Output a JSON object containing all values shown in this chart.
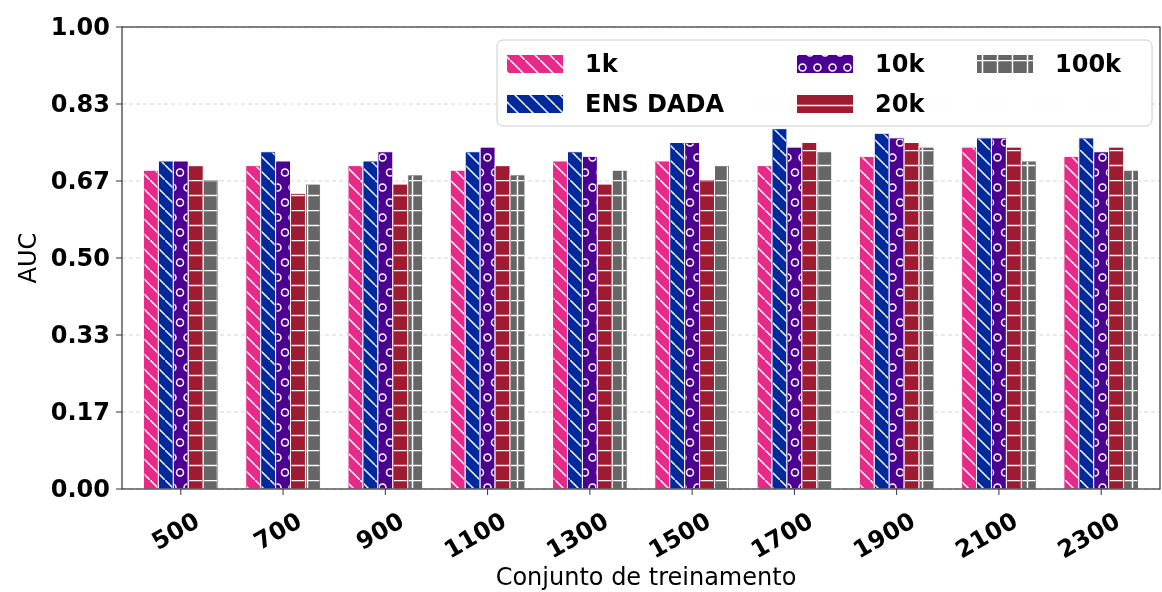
{
  "chart_data": {
    "type": "bar",
    "xlabel": "Conjunto de treinamento",
    "ylabel": "AUC",
    "categories": [
      "500",
      "700",
      "900",
      "1100",
      "1300",
      "1500",
      "1700",
      "1900",
      "2100",
      "2300"
    ],
    "series": [
      {
        "name": "1k",
        "color": "#e7298a",
        "values": [
          0.69,
          0.7,
          0.7,
          0.69,
          0.71,
          0.71,
          0.7,
          0.72,
          0.74,
          0.72
        ]
      },
      {
        "name": "ENS DADA",
        "color": "#00299c",
        "values": [
          0.71,
          0.73,
          0.71,
          0.73,
          0.73,
          0.75,
          0.78,
          0.77,
          0.76,
          0.76
        ]
      },
      {
        "name": "10k",
        "color": "#4b0092",
        "values": [
          0.71,
          0.71,
          0.73,
          0.74,
          0.72,
          0.75,
          0.74,
          0.76,
          0.76,
          0.73
        ]
      },
      {
        "name": "20k",
        "color": "#9e1b32",
        "values": [
          0.7,
          0.64,
          0.66,
          0.7,
          0.66,
          0.67,
          0.75,
          0.75,
          0.74,
          0.74
        ]
      },
      {
        "name": "100k",
        "color": "#666666",
        "values": [
          0.67,
          0.66,
          0.68,
          0.68,
          0.69,
          0.7,
          0.73,
          0.74,
          0.71,
          0.69
        ]
      }
    ],
    "ylim": [
      0,
      1
    ],
    "yticks": [
      {
        "value": 0,
        "label": "0.00"
      },
      {
        "value": 0.1667,
        "label": "0.17"
      },
      {
        "value": 0.3333,
        "label": "0.33"
      },
      {
        "value": 0.5,
        "label": "0.50"
      },
      {
        "value": 0.6667,
        "label": "0.67"
      },
      {
        "value": 0.8333,
        "label": "0.83"
      },
      {
        "value": 1,
        "label": "1.00"
      }
    ],
    "grid": "y",
    "legend": "top right"
  }
}
